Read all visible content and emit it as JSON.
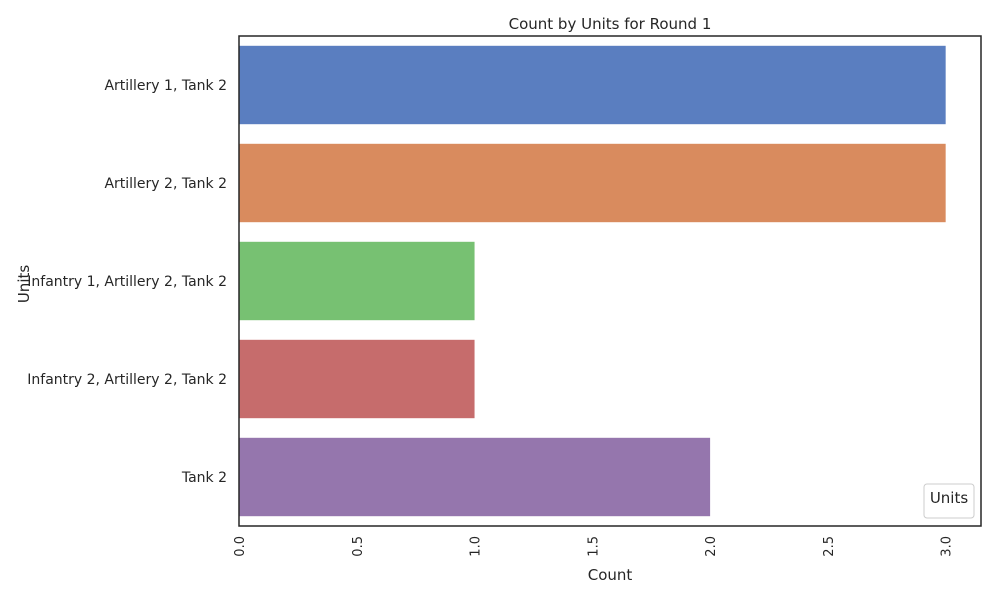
{
  "chart_data": {
    "type": "bar",
    "orientation": "horizontal",
    "title": "Count by Units for Round 1",
    "xlabel": "Count",
    "ylabel": "Units",
    "categories": [
      "Artillery 1, Tank 2",
      "Artillery 2, Tank 2",
      "Infantry 1, Artillery 2, Tank 2",
      "Infantry 2, Artillery 2, Tank 2",
      "Tank 2"
    ],
    "values": [
      3,
      3,
      1,
      1,
      2
    ],
    "colors": [
      "#5a7ec0",
      "#d98b5e",
      "#77c172",
      "#c66c6c",
      "#9576ad"
    ],
    "xlim": [
      0,
      3.15
    ],
    "xticks": [
      "0.0",
      "0.5",
      "1.0",
      "1.5",
      "2.0",
      "2.5",
      "3.0"
    ],
    "xtick_rotation": "vertical",
    "grid": false,
    "legend": {
      "title": "Units",
      "placement": "bottom-right"
    }
  }
}
